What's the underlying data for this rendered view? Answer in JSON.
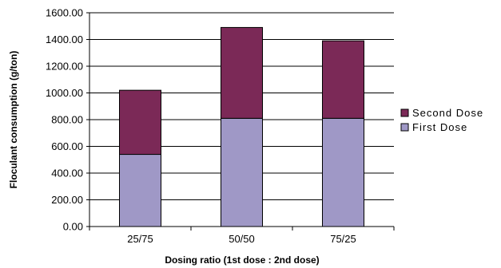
{
  "chart_data": {
    "type": "bar",
    "stacked": true,
    "categories": [
      "25/75",
      "50/50",
      "75/25"
    ],
    "series": [
      {
        "name": "First Dose",
        "values": [
          540,
          810,
          810
        ],
        "color": "#9f98c6"
      },
      {
        "name": "Second Dose",
        "values": [
          480,
          680,
          580
        ],
        "color": "#7b2957"
      }
    ],
    "xlabel": "Dosing ratio (1st dose : 2nd dose)",
    "ylabel": "Floculant consumption (g/ton)",
    "ylim": [
      0,
      1600
    ],
    "yticks": [
      0,
      200,
      400,
      600,
      800,
      1000,
      1200,
      1400,
      1600
    ],
    "ytick_labels": [
      "0.00",
      "200.00",
      "400.00",
      "600.00",
      "800.00",
      "1000.00",
      "1200.00",
      "1400.00",
      "1600.00"
    ],
    "grid": true,
    "legend_position": "right",
    "legend_order": [
      "Second Dose",
      "First Dose"
    ]
  }
}
